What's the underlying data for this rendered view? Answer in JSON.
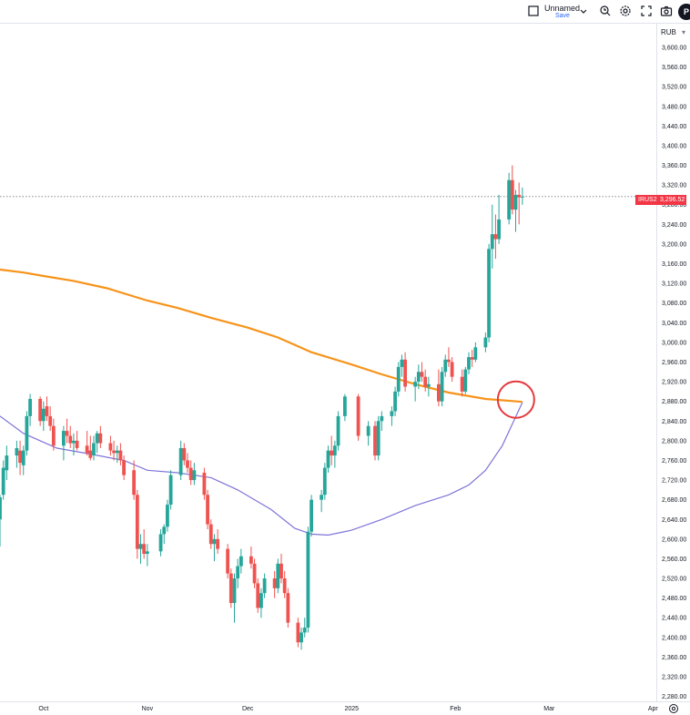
{
  "toolbar": {
    "layout_name": "Unnamed",
    "save_label": "Save",
    "avatar_letter": "P",
    "icons": [
      "checkbox-icon",
      "chevron-down-icon",
      "alert-clock-icon",
      "gear-icon",
      "fullscreen-icon",
      "camera-icon"
    ]
  },
  "price_axis": {
    "currency": "RUB"
  },
  "last_price": {
    "symbol": "IRUS2",
    "value": "3,296.52"
  },
  "colors": {
    "up": "#26a69a",
    "down": "#ef5350",
    "ma_long": "#f7931a",
    "ma_short": "#7e74d9",
    "marker": "#e5393d",
    "last_price": "#f23645"
  },
  "chart_data": {
    "type": "candlestick",
    "y_axis": {
      "range": [
        2270,
        3650
      ],
      "tick_labels": [
        "3,600.00",
        "3,560.00",
        "3,520.00",
        "3,480.00",
        "3,440.00",
        "3,400.00",
        "3,360.00",
        "3,320.00",
        "3,280.00",
        "3,240.00",
        "3,200.00",
        "3,160.00",
        "3,120.00",
        "3,080.00",
        "3,040.00",
        "3,000.00",
        "2,960.00",
        "2,920.00",
        "2,880.00",
        "2,840.00",
        "2,800.00",
        "2,760.00",
        "2,720.00",
        "2,680.00",
        "2,640.00",
        "2,600.00",
        "2,560.00",
        "2,520.00",
        "2,480.00",
        "2,440.00",
        "2,400.00",
        "2,360.00",
        "2,320.00",
        "2,280.00"
      ]
    },
    "x_axis": {
      "range": [
        "2024-09-18",
        "2025-04-02"
      ],
      "tick_labels": [
        {
          "date": "2024-10-01",
          "label": "Oct"
        },
        {
          "date": "2024-11-01",
          "label": "Nov"
        },
        {
          "date": "2024-12-01",
          "label": "Dec"
        },
        {
          "date": "2025-01-01",
          "label": "2025"
        },
        {
          "date": "2025-02-01",
          "label": "Feb"
        },
        {
          "date": "2025-03-01",
          "label": "Mar"
        },
        {
          "date": "2025-04-01",
          "label": "Apr"
        }
      ]
    },
    "candles": [
      {
        "date": "2024-09-18",
        "o": 2640,
        "h": 2690,
        "l": 2585,
        "c": 2685
      },
      {
        "date": "2024-09-19",
        "o": 2690,
        "h": 2760,
        "l": 2680,
        "c": 2745
      },
      {
        "date": "2024-09-20",
        "o": 2740,
        "h": 2790,
        "l": 2720,
        "c": 2770
      },
      {
        "date": "2024-09-23",
        "o": 2770,
        "h": 2800,
        "l": 2745,
        "c": 2785
      },
      {
        "date": "2024-09-24",
        "o": 2780,
        "h": 2800,
        "l": 2730,
        "c": 2755
      },
      {
        "date": "2024-09-25",
        "o": 2750,
        "h": 2790,
        "l": 2730,
        "c": 2780
      },
      {
        "date": "2024-09-26",
        "o": 2780,
        "h": 2860,
        "l": 2770,
        "c": 2850
      },
      {
        "date": "2024-09-27",
        "o": 2850,
        "h": 2895,
        "l": 2830,
        "c": 2885
      },
      {
        "date": "2024-09-30",
        "o": 2885,
        "h": 2890,
        "l": 2830,
        "c": 2840
      },
      {
        "date": "2024-10-01",
        "o": 2840,
        "h": 2880,
        "l": 2820,
        "c": 2865
      },
      {
        "date": "2024-10-02",
        "o": 2870,
        "h": 2890,
        "l": 2840,
        "c": 2850
      },
      {
        "date": "2024-10-03",
        "o": 2850,
        "h": 2870,
        "l": 2820,
        "c": 2830
      },
      {
        "date": "2024-10-04",
        "o": 2830,
        "h": 2845,
        "l": 2780,
        "c": 2790
      },
      {
        "date": "2024-10-07",
        "o": 2790,
        "h": 2830,
        "l": 2760,
        "c": 2820
      },
      {
        "date": "2024-10-08",
        "o": 2820,
        "h": 2845,
        "l": 2795,
        "c": 2810
      },
      {
        "date": "2024-10-09",
        "o": 2810,
        "h": 2830,
        "l": 2785,
        "c": 2795
      },
      {
        "date": "2024-10-10",
        "o": 2795,
        "h": 2815,
        "l": 2770,
        "c": 2800
      },
      {
        "date": "2024-10-11",
        "o": 2800,
        "h": 2820,
        "l": 2780,
        "c": 2785
      },
      {
        "date": "2024-10-14",
        "o": 2790,
        "h": 2820,
        "l": 2770,
        "c": 2775
      },
      {
        "date": "2024-10-15",
        "o": 2780,
        "h": 2810,
        "l": 2760,
        "c": 2765
      },
      {
        "date": "2024-10-16",
        "o": 2770,
        "h": 2810,
        "l": 2760,
        "c": 2795
      },
      {
        "date": "2024-10-17",
        "o": 2795,
        "h": 2820,
        "l": 2775,
        "c": 2815
      },
      {
        "date": "2024-10-18",
        "o": 2815,
        "h": 2830,
        "l": 2785,
        "c": 2795
      },
      {
        "date": "2024-10-21",
        "o": 2795,
        "h": 2810,
        "l": 2770,
        "c": 2780
      },
      {
        "date": "2024-10-22",
        "o": 2780,
        "h": 2800,
        "l": 2760,
        "c": 2775
      },
      {
        "date": "2024-10-23",
        "o": 2775,
        "h": 2790,
        "l": 2755,
        "c": 2780
      },
      {
        "date": "2024-10-24",
        "o": 2780,
        "h": 2795,
        "l": 2750,
        "c": 2760
      },
      {
        "date": "2024-10-25",
        "o": 2760,
        "h": 2770,
        "l": 2720,
        "c": 2730
      },
      {
        "date": "2024-10-28",
        "o": 2740,
        "h": 2760,
        "l": 2680,
        "c": 2690
      },
      {
        "date": "2024-10-29",
        "o": 2690,
        "h": 2700,
        "l": 2560,
        "c": 2580
      },
      {
        "date": "2024-10-30",
        "o": 2580,
        "h": 2610,
        "l": 2550,
        "c": 2590
      },
      {
        "date": "2024-10-31",
        "o": 2590,
        "h": 2620,
        "l": 2560,
        "c": 2570
      },
      {
        "date": "2024-11-01",
        "o": 2570,
        "h": 2590,
        "l": 2545,
        "c": 2575
      },
      {
        "date": "2024-11-05",
        "o": 2575,
        "h": 2620,
        "l": 2565,
        "c": 2610
      },
      {
        "date": "2024-11-06",
        "o": 2610,
        "h": 2630,
        "l": 2590,
        "c": 2625
      },
      {
        "date": "2024-11-07",
        "o": 2625,
        "h": 2680,
        "l": 2615,
        "c": 2670
      },
      {
        "date": "2024-11-08",
        "o": 2670,
        "h": 2740,
        "l": 2660,
        "c": 2730
      },
      {
        "date": "2024-11-11",
        "o": 2730,
        "h": 2800,
        "l": 2720,
        "c": 2785
      },
      {
        "date": "2024-11-12",
        "o": 2785,
        "h": 2795,
        "l": 2750,
        "c": 2760
      },
      {
        "date": "2024-11-13",
        "o": 2760,
        "h": 2775,
        "l": 2735,
        "c": 2745
      },
      {
        "date": "2024-11-14",
        "o": 2745,
        "h": 2760,
        "l": 2710,
        "c": 2720
      },
      {
        "date": "2024-11-15",
        "o": 2720,
        "h": 2755,
        "l": 2710,
        "c": 2740
      },
      {
        "date": "2024-11-18",
        "o": 2735,
        "h": 2745,
        "l": 2680,
        "c": 2690
      },
      {
        "date": "2024-11-19",
        "o": 2690,
        "h": 2700,
        "l": 2620,
        "c": 2630
      },
      {
        "date": "2024-11-20",
        "o": 2630,
        "h": 2640,
        "l": 2580,
        "c": 2590
      },
      {
        "date": "2024-11-21",
        "o": 2590,
        "h": 2610,
        "l": 2555,
        "c": 2600
      },
      {
        "date": "2024-11-22",
        "o": 2600,
        "h": 2620,
        "l": 2570,
        "c": 2580
      },
      {
        "date": "2024-11-25",
        "o": 2580,
        "h": 2590,
        "l": 2520,
        "c": 2530
      },
      {
        "date": "2024-11-26",
        "o": 2530,
        "h": 2540,
        "l": 2460,
        "c": 2470
      },
      {
        "date": "2024-11-27",
        "o": 2470,
        "h": 2530,
        "l": 2430,
        "c": 2520
      },
      {
        "date": "2024-11-28",
        "o": 2520,
        "h": 2560,
        "l": 2500,
        "c": 2545
      },
      {
        "date": "2024-11-29",
        "o": 2545,
        "h": 2580,
        "l": 2530,
        "c": 2565
      },
      {
        "date": "2024-12-02",
        "o": 2565,
        "h": 2585,
        "l": 2540,
        "c": 2550
      },
      {
        "date": "2024-12-03",
        "o": 2550,
        "h": 2560,
        "l": 2500,
        "c": 2510
      },
      {
        "date": "2024-12-04",
        "o": 2510,
        "h": 2520,
        "l": 2450,
        "c": 2460
      },
      {
        "date": "2024-12-05",
        "o": 2460,
        "h": 2500,
        "l": 2440,
        "c": 2490
      },
      {
        "date": "2024-12-06",
        "o": 2490,
        "h": 2530,
        "l": 2480,
        "c": 2520
      },
      {
        "date": "2024-12-09",
        "o": 2520,
        "h": 2535,
        "l": 2480,
        "c": 2500
      },
      {
        "date": "2024-12-10",
        "o": 2500,
        "h": 2560,
        "l": 2490,
        "c": 2550
      },
      {
        "date": "2024-12-11",
        "o": 2550,
        "h": 2570,
        "l": 2510,
        "c": 2520
      },
      {
        "date": "2024-12-12",
        "o": 2520,
        "h": 2535,
        "l": 2480,
        "c": 2490
      },
      {
        "date": "2024-12-13",
        "o": 2490,
        "h": 2500,
        "l": 2420,
        "c": 2430
      },
      {
        "date": "2024-12-16",
        "o": 2430,
        "h": 2440,
        "l": 2380,
        "c": 2390
      },
      {
        "date": "2024-12-17",
        "o": 2390,
        "h": 2420,
        "l": 2375,
        "c": 2410
      },
      {
        "date": "2024-12-18",
        "o": 2410,
        "h": 2440,
        "l": 2400,
        "c": 2420
      },
      {
        "date": "2024-12-19",
        "o": 2420,
        "h": 2625,
        "l": 2410,
        "c": 2615
      },
      {
        "date": "2024-12-20",
        "o": 2615,
        "h": 2690,
        "l": 2605,
        "c": 2680
      },
      {
        "date": "2024-12-23",
        "o": 2680,
        "h": 2700,
        "l": 2655,
        "c": 2690
      },
      {
        "date": "2024-12-24",
        "o": 2690,
        "h": 2755,
        "l": 2680,
        "c": 2745
      },
      {
        "date": "2024-12-25",
        "o": 2745,
        "h": 2790,
        "l": 2735,
        "c": 2780
      },
      {
        "date": "2024-12-26",
        "o": 2780,
        "h": 2810,
        "l": 2750,
        "c": 2770
      },
      {
        "date": "2024-12-27",
        "o": 2770,
        "h": 2800,
        "l": 2745,
        "c": 2790
      },
      {
        "date": "2024-12-28",
        "o": 2790,
        "h": 2860,
        "l": 2780,
        "c": 2850
      },
      {
        "date": "2024-12-30",
        "o": 2850,
        "h": 2895,
        "l": 2840,
        "c": 2890
      },
      {
        "date": "2025-01-03",
        "o": 2890,
        "h": 2895,
        "l": 2800,
        "c": 2810
      },
      {
        "date": "2025-01-06",
        "o": 2810,
        "h": 2840,
        "l": 2790,
        "c": 2830
      },
      {
        "date": "2025-01-08",
        "o": 2830,
        "h": 2840,
        "l": 2760,
        "c": 2770
      },
      {
        "date": "2025-01-09",
        "o": 2770,
        "h": 2850,
        "l": 2760,
        "c": 2840
      },
      {
        "date": "2025-01-10",
        "o": 2840,
        "h": 2860,
        "l": 2820,
        "c": 2850
      },
      {
        "date": "2025-01-13",
        "o": 2850,
        "h": 2870,
        "l": 2830,
        "c": 2860
      },
      {
        "date": "2025-01-14",
        "o": 2860,
        "h": 2910,
        "l": 2850,
        "c": 2900
      },
      {
        "date": "2025-01-15",
        "o": 2900,
        "h": 2960,
        "l": 2890,
        "c": 2950
      },
      {
        "date": "2025-01-16",
        "o": 2950,
        "h": 2975,
        "l": 2930,
        "c": 2965
      },
      {
        "date": "2025-01-17",
        "o": 2965,
        "h": 2980,
        "l": 2900,
        "c": 2910
      },
      {
        "date": "2025-01-20",
        "o": 2910,
        "h": 2930,
        "l": 2880,
        "c": 2920
      },
      {
        "date": "2025-01-21",
        "o": 2920,
        "h": 2955,
        "l": 2905,
        "c": 2940
      },
      {
        "date": "2025-01-22",
        "o": 2940,
        "h": 2960,
        "l": 2920,
        "c": 2930
      },
      {
        "date": "2025-01-23",
        "o": 2930,
        "h": 2945,
        "l": 2900,
        "c": 2910
      },
      {
        "date": "2025-01-24",
        "o": 2910,
        "h": 2930,
        "l": 2890,
        "c": 2915
      },
      {
        "date": "2025-01-27",
        "o": 2915,
        "h": 2945,
        "l": 2870,
        "c": 2880
      },
      {
        "date": "2025-01-28",
        "o": 2880,
        "h": 2950,
        "l": 2870,
        "c": 2940
      },
      {
        "date": "2025-01-29",
        "o": 2940,
        "h": 2975,
        "l": 2930,
        "c": 2965
      },
      {
        "date": "2025-01-30",
        "o": 2965,
        "h": 2990,
        "l": 2950,
        "c": 2960
      },
      {
        "date": "2025-01-31",
        "o": 2960,
        "h": 2970,
        "l": 2920,
        "c": 2930
      },
      {
        "date": "2025-02-03",
        "o": 2930,
        "h": 2945,
        "l": 2890,
        "c": 2900
      },
      {
        "date": "2025-02-04",
        "o": 2900,
        "h": 2950,
        "l": 2895,
        "c": 2945
      },
      {
        "date": "2025-02-05",
        "o": 2945,
        "h": 2980,
        "l": 2935,
        "c": 2970
      },
      {
        "date": "2025-02-06",
        "o": 2970,
        "h": 2985,
        "l": 2950,
        "c": 2965
      },
      {
        "date": "2025-02-07",
        "o": 2965,
        "h": 3000,
        "l": 2960,
        "c": 2990
      },
      {
        "date": "2025-02-10",
        "o": 2990,
        "h": 3020,
        "l": 2980,
        "c": 3010
      },
      {
        "date": "2025-02-11",
        "o": 3010,
        "h": 3200,
        "l": 3000,
        "c": 3190
      },
      {
        "date": "2025-02-12",
        "o": 3190,
        "h": 3280,
        "l": 3150,
        "c": 3220
      },
      {
        "date": "2025-02-13",
        "o": 3220,
        "h": 3260,
        "l": 3170,
        "c": 3210
      },
      {
        "date": "2025-02-14",
        "o": 3210,
        "h": 3300,
        "l": 3200,
        "c": 3250
      },
      {
        "date": "2025-02-17",
        "o": 3250,
        "h": 3345,
        "l": 3240,
        "c": 3330
      },
      {
        "date": "2025-02-18",
        "o": 3330,
        "h": 3360,
        "l": 3260,
        "c": 3270
      },
      {
        "date": "2025-02-19",
        "o": 3270,
        "h": 3310,
        "l": 3225,
        "c": 3300
      },
      {
        "date": "2025-02-20",
        "o": 3300,
        "h": 3325,
        "l": 3240,
        "c": 3295
      },
      {
        "date": "2025-02-21",
        "o": 3295,
        "h": 3315,
        "l": 3280,
        "c": 3296.52
      }
    ],
    "moving_averages": [
      {
        "color": "#f7931a",
        "points": [
          [
            "2024-09-18",
            3148
          ],
          [
            "2024-09-25",
            3142
          ],
          [
            "2024-10-01",
            3135
          ],
          [
            "2024-10-10",
            3125
          ],
          [
            "2024-10-20",
            3110
          ],
          [
            "2024-11-01",
            3085
          ],
          [
            "2024-11-10",
            3070
          ],
          [
            "2024-11-20",
            3050
          ],
          [
            "2024-12-01",
            3030
          ],
          [
            "2024-12-10",
            3010
          ],
          [
            "2024-12-20",
            2980
          ],
          [
            "2025-01-01",
            2955
          ],
          [
            "2025-01-10",
            2935
          ],
          [
            "2025-01-20",
            2915
          ],
          [
            "2025-01-30",
            2898
          ],
          [
            "2025-02-10",
            2885
          ],
          [
            "2025-02-21",
            2879
          ]
        ]
      },
      {
        "color": "#7e74d9",
        "points": [
          [
            "2024-09-18",
            2850
          ],
          [
            "2024-09-25",
            2815
          ],
          [
            "2024-10-05",
            2785
          ],
          [
            "2024-10-15",
            2773
          ],
          [
            "2024-10-25",
            2760
          ],
          [
            "2024-11-01",
            2740
          ],
          [
            "2024-11-10",
            2735
          ],
          [
            "2024-11-20",
            2725
          ],
          [
            "2024-11-28",
            2700
          ],
          [
            "2024-12-08",
            2660
          ],
          [
            "2024-12-15",
            2622
          ],
          [
            "2024-12-20",
            2610
          ],
          [
            "2024-12-25",
            2608
          ],
          [
            "2025-01-01",
            2618
          ],
          [
            "2025-01-10",
            2640
          ],
          [
            "2025-01-20",
            2668
          ],
          [
            "2025-01-30",
            2690
          ],
          [
            "2025-02-05",
            2710
          ],
          [
            "2025-02-10",
            2740
          ],
          [
            "2025-02-15",
            2790
          ],
          [
            "2025-02-21",
            2878
          ]
        ]
      }
    ],
    "last_price_line": 3296.52,
    "annotations": [
      {
        "type": "circle",
        "date": "2025-02-21",
        "value": 2880,
        "color": "#e5393d"
      }
    ]
  }
}
